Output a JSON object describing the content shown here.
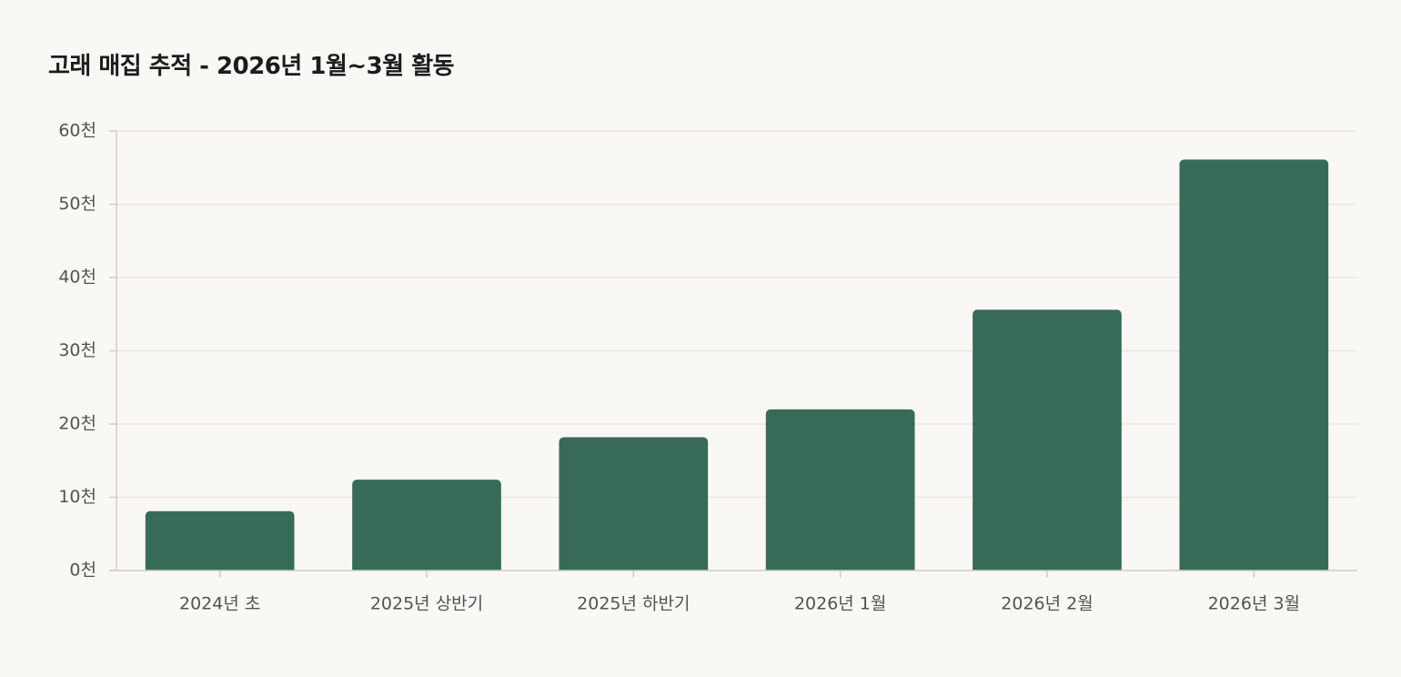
{
  "chart_data": {
    "type": "bar",
    "title": "고래 매집 추적 - 2026년 1월~3월 활동",
    "xlabel": "",
    "ylabel": "",
    "categories": [
      "2024년 초",
      "2025년 상반기",
      "2025년 하반기",
      "2026년 1월",
      "2026년 2월",
      "2026년 3월"
    ],
    "values": [
      8100,
      12400,
      18200,
      22000,
      35600,
      56100
    ],
    "ylim": [
      0,
      60000
    ],
    "yticks": [
      0,
      10000,
      20000,
      30000,
      40000,
      50000,
      60000
    ],
    "ytick_labels": [
      "0천",
      "10천",
      "20천",
      "30천",
      "40천",
      "50천",
      "60천"
    ],
    "grid": true,
    "legend": "none",
    "bar_color": "#376b58",
    "background": "#f9f8f5",
    "gridline_color": "#e9e6e0",
    "axis_color": "#cfccc5"
  }
}
